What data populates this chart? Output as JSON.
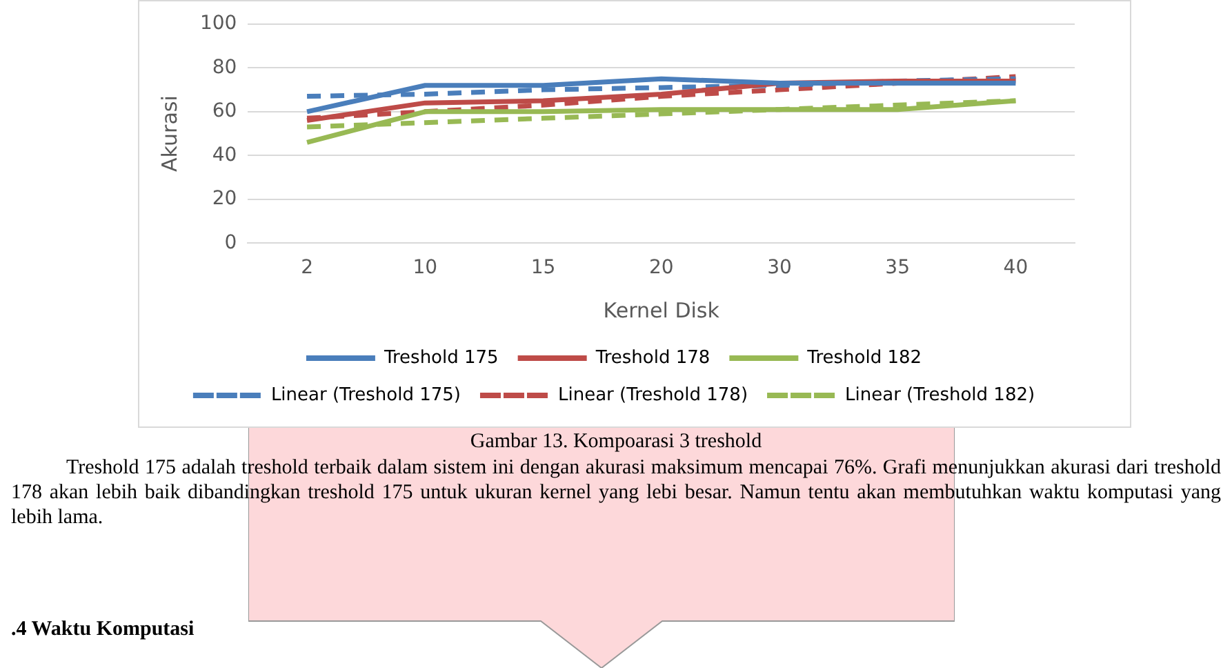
{
  "chart_data": {
    "type": "line",
    "xlabel": "Kernel Disk",
    "ylabel": "Akurasi",
    "categories": [
      "2",
      "10",
      "15",
      "20",
      "30",
      "35",
      "40"
    ],
    "ylim": [
      0,
      100
    ],
    "yticks": [
      0,
      20,
      40,
      60,
      80,
      100
    ],
    "grid": "y",
    "legend": "bottom",
    "series": [
      {
        "name": "Treshold 175",
        "color": "#4a7ebb",
        "line_style": "solid",
        "values": [
          60,
          72,
          72,
          75,
          73,
          73,
          73
        ]
      },
      {
        "name": "Treshold 178",
        "color": "#be4b48",
        "line_style": "solid",
        "values": [
          56,
          64,
          65,
          68,
          73,
          74,
          74
        ]
      },
      {
        "name": "Treshold 182",
        "color": "#98b954",
        "line_style": "solid",
        "values": [
          46,
          60,
          60,
          61,
          61,
          61,
          65
        ]
      },
      {
        "name": "Linear (Treshold 175)",
        "color": "#4a7ebb",
        "line_style": "dashed",
        "values": [
          67,
          68,
          70,
          71,
          72,
          74,
          75
        ]
      },
      {
        "name": "Linear (Treshold 178)",
        "color": "#be4b48",
        "line_style": "dashed",
        "values": [
          57,
          60,
          63,
          67,
          70,
          73,
          76
        ]
      },
      {
        "name": "Linear (Treshold 182)",
        "color": "#98b954",
        "line_style": "dashed",
        "values": [
          53,
          55,
          57,
          59,
          61,
          63,
          65
        ]
      }
    ],
    "annotations": [
      "Gambar 13. Kompoarasi 3 treshold",
      "Treshold 175 adalah treshold terbaik dalam sistem ini dengan akurasi maksimum mencapai 76%. Grafi menunjukkan akurasi dari treshold 178 akan lebih baik dibandingkan treshold 175 untuk ukuran kernel yang lebi besar. Namun tentu akan membutuhkan waktu komputasi yang lebih lama.",
      ".4 Waktu Komputasi"
    ]
  }
}
